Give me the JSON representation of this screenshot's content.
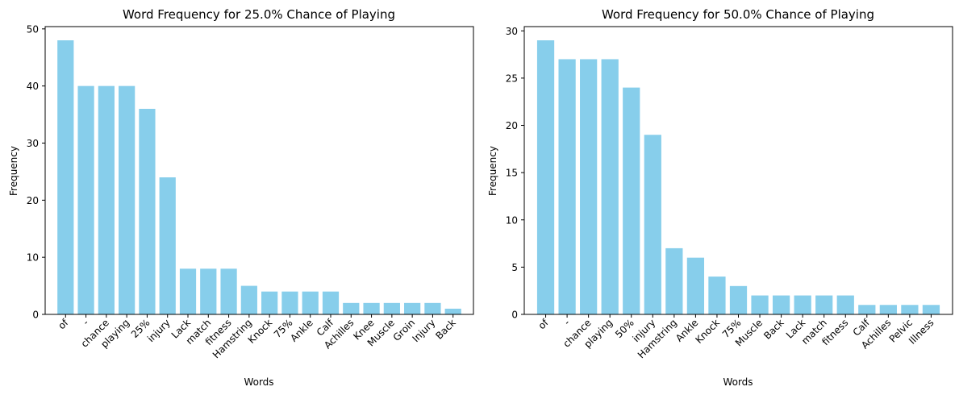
{
  "chart_data": [
    {
      "type": "bar",
      "title": "Word Frequency for 25.0% Chance of Playing",
      "xlabel": "Words",
      "ylabel": "Frequency",
      "categories": [
        "of",
        "-",
        "chance",
        "playing",
        "25%",
        "injury",
        "Lack",
        "match",
        "fitness",
        "Hamstring",
        "Knock",
        "75%",
        "Ankle",
        "Calf",
        "Achilles",
        "Knee",
        "Muscle",
        "Groin",
        "Injury",
        "Back"
      ],
      "values": [
        48,
        40,
        40,
        40,
        36,
        24,
        8,
        8,
        8,
        5,
        4,
        4,
        4,
        4,
        2,
        2,
        2,
        2,
        2,
        1
      ],
      "yticks": [
        0,
        10,
        20,
        30,
        40,
        50
      ],
      "ylim": [
        0,
        50.4
      ],
      "grid": false,
      "bar_color": "#87ceeb",
      "xtick_rotation": 45
    },
    {
      "type": "bar",
      "title": "Word Frequency for 50.0% Chance of Playing",
      "xlabel": "Words",
      "ylabel": "Frequency",
      "categories": [
        "of",
        "-",
        "chance",
        "playing",
        "50%",
        "injury",
        "Hamstring",
        "Ankle",
        "Knock",
        "75%",
        "Muscle",
        "Back",
        "Lack",
        "match",
        "fitness",
        "Calf",
        "Achilles",
        "Pelvic",
        "Illness"
      ],
      "values": [
        29,
        27,
        27,
        27,
        24,
        19,
        7,
        6,
        4,
        3,
        2,
        2,
        2,
        2,
        2,
        1,
        1,
        1,
        1
      ],
      "yticks": [
        0,
        5,
        10,
        15,
        20,
        25,
        30
      ],
      "ylim": [
        0,
        30.45
      ],
      "grid": false,
      "bar_color": "#87ceeb",
      "xtick_rotation": 45
    }
  ]
}
